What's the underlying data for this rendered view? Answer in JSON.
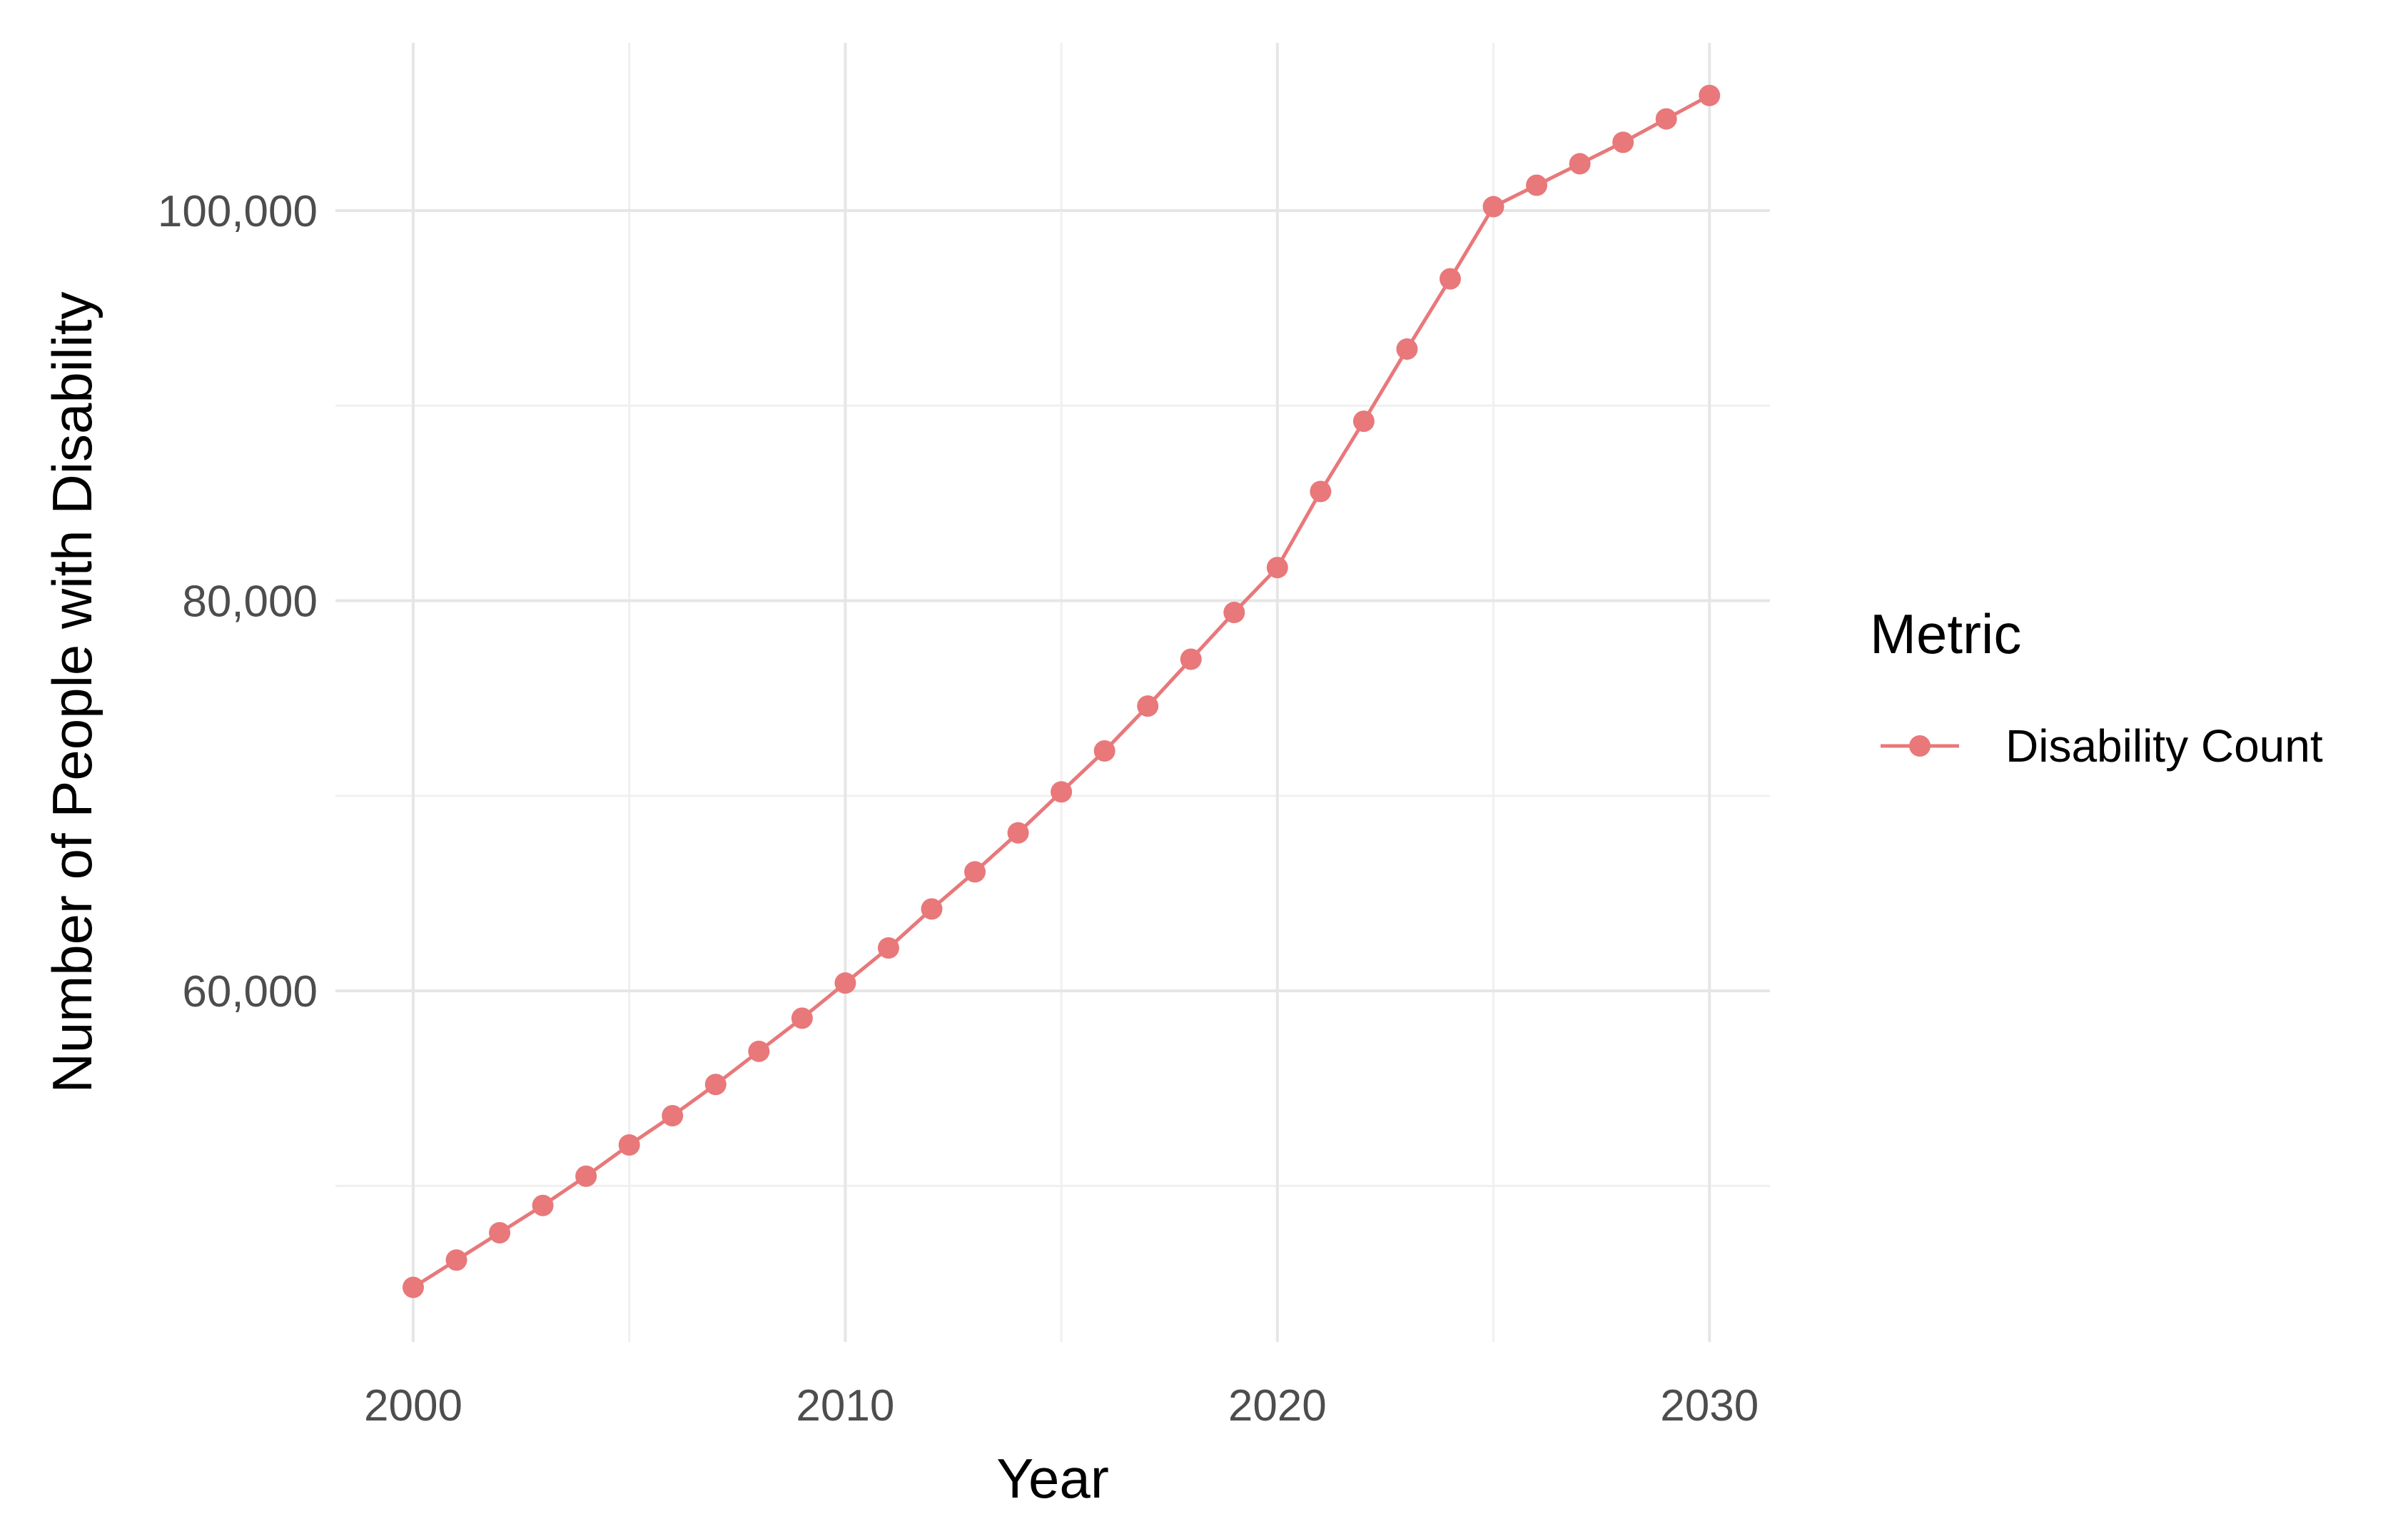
{
  "chart_data": {
    "type": "line",
    "title": "",
    "xlabel": "Year",
    "ylabel": "Number of People with Disability",
    "x": [
      2000,
      2001,
      2002,
      2003,
      2004,
      2005,
      2006,
      2007,
      2008,
      2009,
      2010,
      2011,
      2012,
      2013,
      2014,
      2015,
      2016,
      2017,
      2018,
      2019,
      2020,
      2021,
      2022,
      2023,
      2024,
      2025,
      2026,
      2027,
      2028,
      2029,
      2030
    ],
    "series": [
      {
        "name": "Disability Count",
        "color": "#e8787a",
        "values": [
          44800,
          46200,
          47600,
          49000,
          50500,
          52100,
          53600,
          55200,
          56900,
          58600,
          60400,
          62200,
          64200,
          66100,
          68100,
          70200,
          72300,
          74600,
          77000,
          79400,
          81700,
          85600,
          89200,
          92900,
          96500,
          100200,
          101300,
          102400,
          103500,
          104700,
          105900
        ]
      }
    ],
    "xlim": [
      1998.2,
      2031.4
    ],
    "ylim": [
      42000,
      108600
    ],
    "x_ticks": [
      2000,
      2010,
      2020,
      2030
    ],
    "x_tick_labels": [
      "2000",
      "2010",
      "2020",
      "2030"
    ],
    "y_ticks": [
      60000,
      80000,
      100000
    ],
    "y_tick_labels": [
      "60,000",
      "80,000",
      "100,000"
    ],
    "x_minor_ticks": [
      2005,
      2015,
      2025
    ],
    "y_minor_ticks": [
      50000,
      70000,
      90000
    ],
    "grid": true,
    "legend": {
      "title": "Metric",
      "placement": "right",
      "entries": [
        "Disability Count"
      ]
    }
  }
}
